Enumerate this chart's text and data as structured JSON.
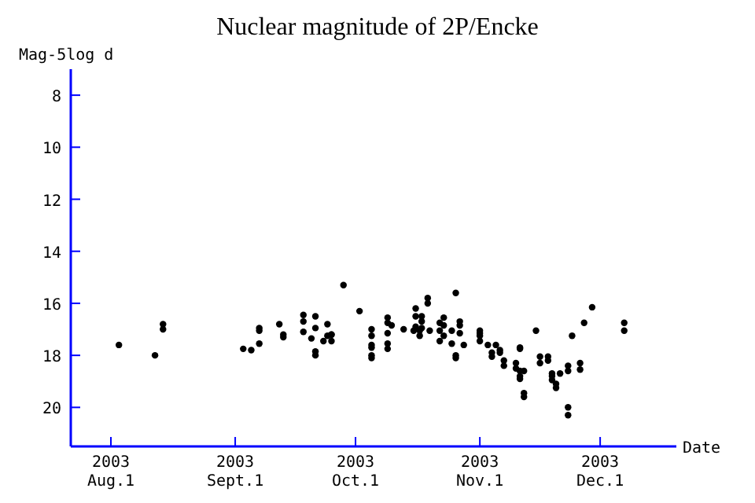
{
  "chart_data": {
    "type": "scatter",
    "title": "Nuclear magnitude of 2P/Encke",
    "xlabel": "Date",
    "ylabel": "Mag-5log d",
    "xlim": [
      "2003-07-22",
      "2003-12-20"
    ],
    "xticks": [
      {
        "value": "2003-08-01",
        "label": "2003\nAug.1"
      },
      {
        "value": "2003-09-01",
        "label": "2003\nSept.1"
      },
      {
        "value": "2003-10-01",
        "label": "2003\nOct.1"
      },
      {
        "value": "2003-11-01",
        "label": "2003\nNov.1"
      },
      {
        "value": "2003-12-01",
        "label": "2003\nDec.1"
      }
    ],
    "ylim": [
      21.5,
      7
    ],
    "yticks": [
      8,
      10,
      12,
      14,
      16,
      18,
      20
    ],
    "grid": false,
    "marker": "circle",
    "series": [
      {
        "color": "#000000",
        "x": [
          "2003-08-03",
          "2003-08-12",
          "2003-08-14",
          "2003-08-14",
          "2003-09-03",
          "2003-09-05",
          "2003-09-07",
          "2003-09-07",
          "2003-09-07",
          "2003-09-12",
          "2003-09-13",
          "2003-09-13",
          "2003-09-18",
          "2003-09-18",
          "2003-09-18",
          "2003-09-20",
          "2003-09-21",
          "2003-09-21",
          "2003-09-21",
          "2003-09-21",
          "2003-09-23",
          "2003-09-24",
          "2003-09-24",
          "2003-09-25",
          "2003-09-25",
          "2003-09-25",
          "2003-09-28",
          "2003-10-02",
          "2003-10-05",
          "2003-10-05",
          "2003-10-05",
          "2003-10-05",
          "2003-10-05",
          "2003-10-05",
          "2003-10-09",
          "2003-10-09",
          "2003-10-09",
          "2003-10-09",
          "2003-10-09",
          "2003-10-10",
          "2003-10-13",
          "2003-10-15T12:00",
          "2003-10-16",
          "2003-10-16",
          "2003-10-16",
          "2003-10-17",
          "2003-10-17",
          "2003-10-17T12:00",
          "2003-10-17T12:00",
          "2003-10-17T12:00",
          "2003-10-19",
          "2003-10-19",
          "2003-10-19T12:00",
          "2003-10-22",
          "2003-10-22",
          "2003-10-22",
          "2003-10-23",
          "2003-10-23",
          "2003-10-23",
          "2003-10-25",
          "2003-10-25",
          "2003-10-26",
          "2003-10-26",
          "2003-10-26",
          "2003-10-27",
          "2003-10-27",
          "2003-10-27",
          "2003-10-28",
          "2003-11-01",
          "2003-11-01",
          "2003-11-01",
          "2003-11-01",
          "2003-11-03",
          "2003-11-04",
          "2003-11-04",
          "2003-11-05",
          "2003-11-06",
          "2003-11-06",
          "2003-11-07",
          "2003-11-07",
          "2003-11-10",
          "2003-11-10",
          "2003-11-11",
          "2003-11-11",
          "2003-11-11",
          "2003-11-11",
          "2003-11-11",
          "2003-11-12",
          "2003-11-12",
          "2003-11-12",
          "2003-11-15",
          "2003-11-16",
          "2003-11-16",
          "2003-11-18",
          "2003-11-18",
          "2003-11-19",
          "2003-11-19",
          "2003-11-19",
          "2003-11-20",
          "2003-11-20",
          "2003-11-21",
          "2003-11-23",
          "2003-11-23",
          "2003-11-23",
          "2003-11-23",
          "2003-11-24",
          "2003-11-26",
          "2003-11-26",
          "2003-11-27",
          "2003-11-29",
          "2003-12-07",
          "2003-12-07"
        ],
        "values": [
          17.6,
          18.0,
          16.8,
          17.0,
          17.75,
          17.8,
          16.95,
          17.05,
          17.55,
          16.8,
          17.2,
          17.3,
          16.45,
          16.7,
          17.1,
          17.35,
          17.85,
          18.0,
          16.5,
          16.95,
          17.45,
          16.8,
          17.25,
          17.2,
          17.45,
          17.2,
          15.3,
          16.3,
          17.0,
          17.25,
          17.6,
          17.7,
          18.0,
          18.1,
          16.55,
          16.75,
          17.15,
          17.55,
          17.75,
          16.85,
          17.0,
          17.05,
          16.2,
          16.5,
          16.9,
          17.05,
          17.25,
          16.5,
          16.7,
          16.95,
          16.0,
          15.8,
          17.05,
          16.75,
          17.05,
          17.45,
          16.55,
          16.85,
          17.25,
          17.05,
          17.55,
          15.6,
          18.1,
          18.0,
          16.85,
          17.15,
          16.7,
          17.6,
          17.15,
          17.45,
          17.05,
          17.25,
          17.6,
          17.9,
          18.05,
          17.6,
          17.8,
          17.9,
          18.2,
          18.4,
          18.3,
          18.5,
          17.75,
          17.7,
          18.6,
          18.8,
          18.9,
          19.45,
          19.6,
          18.6,
          17.05,
          18.05,
          18.3,
          18.05,
          18.2,
          18.95,
          18.8,
          18.7,
          19.1,
          19.25,
          18.7,
          18.4,
          18.6,
          20.0,
          20.3,
          17.25,
          18.3,
          18.55,
          16.75,
          16.15,
          16.75,
          17.05
        ]
      }
    ]
  }
}
